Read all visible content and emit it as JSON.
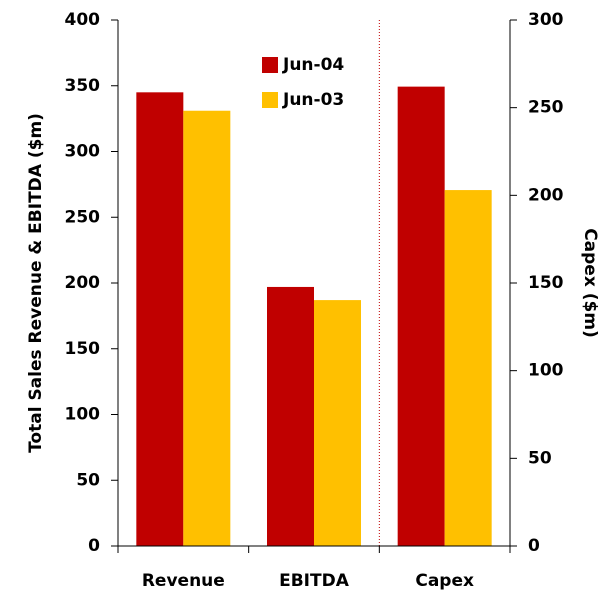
{
  "chart_data": {
    "type": "bar",
    "categories": [
      "Revenue",
      "EBITDA",
      "Capex"
    ],
    "category_axes": [
      "y",
      "y",
      "y2"
    ],
    "series": [
      {
        "name": "Jun-04",
        "color": "#c00000",
        "values": [
          345,
          197,
          262
        ]
      },
      {
        "name": "Jun-03",
        "color": "#ffc000",
        "values": [
          331,
          187,
          203
        ]
      }
    ],
    "ylabel": "Total Sales Revenue & EBITDA ($m)",
    "y2label": "Capex ($m)",
    "ylim": [
      0,
      400
    ],
    "yticks": [
      0,
      50,
      100,
      150,
      200,
      250,
      300,
      350,
      400
    ],
    "y2lim": [
      0,
      300
    ],
    "y2ticks": [
      0,
      50,
      100,
      150,
      200,
      250,
      300
    ],
    "legend": "top"
  }
}
